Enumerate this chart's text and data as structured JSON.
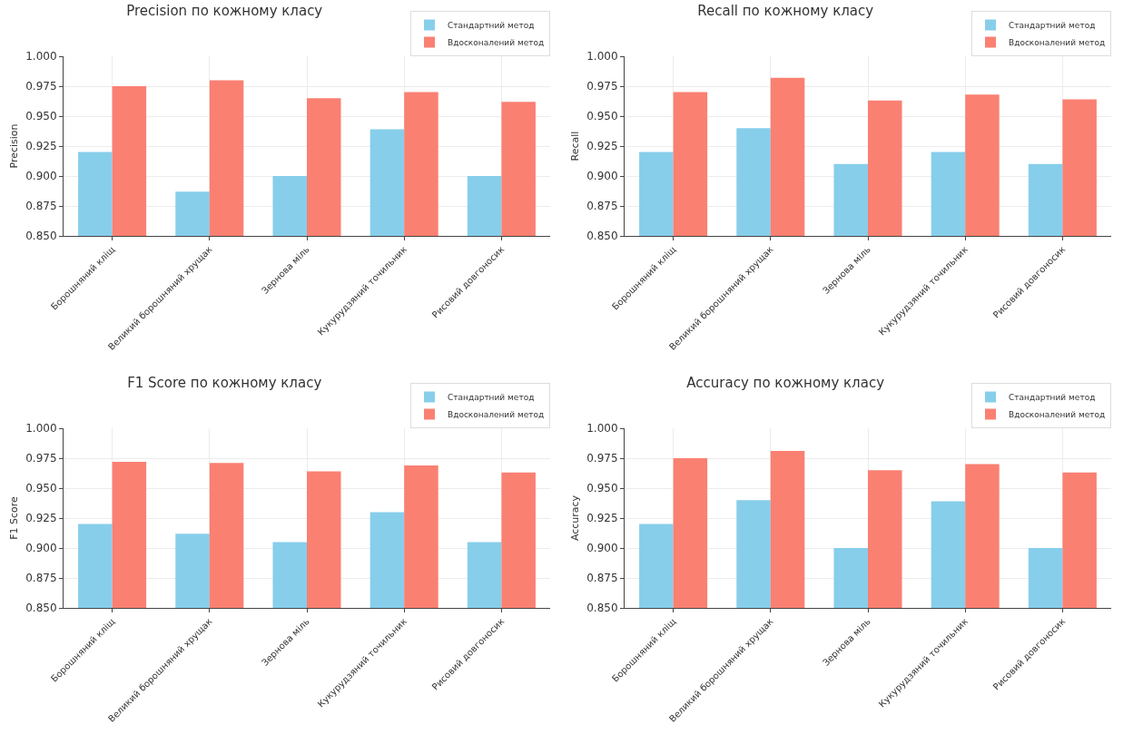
{
  "chart_data": [
    {
      "type": "bar",
      "title": "Precision по кожному класу",
      "ylabel": "Precision",
      "categories": [
        "Борошняний кліщ",
        "Великий борошняний хрущак",
        "Зернова міль",
        "Кукурудзяний точильник",
        "Рисовий довгоносик"
      ],
      "series": [
        {
          "name": "Стандартний метод",
          "color": "#87ceeb",
          "values": [
            0.92,
            0.887,
            0.9,
            0.939,
            0.9
          ]
        },
        {
          "name": "Вдосконалений метод",
          "color": "#fa8072",
          "values": [
            0.975,
            0.98,
            0.965,
            0.97,
            0.962
          ]
        }
      ],
      "ylim": [
        0.85,
        1.0
      ],
      "yticks": [
        {
          "value": 0.85,
          "label": "0.850"
        },
        {
          "value": 0.875,
          "label": "0.875"
        },
        {
          "value": 0.9,
          "label": "0.900"
        },
        {
          "value": 0.925,
          "label": "0.925"
        },
        {
          "value": 0.95,
          "label": "0.950"
        },
        {
          "value": 0.975,
          "label": "0.975"
        },
        {
          "value": 1.0,
          "label": "1.000"
        }
      ],
      "grid": true,
      "legend": "top right"
    },
    {
      "type": "bar",
      "title": "Recall по кожному класу",
      "ylabel": "Recall",
      "categories": [
        "Борошняний кліщ",
        "Великий борошняний хрущак",
        "Зернова міль",
        "Кукурудзяний точильник",
        "Рисовий довгоносик"
      ],
      "series": [
        {
          "name": "Стандартний метод",
          "color": "#87ceeb",
          "values": [
            0.92,
            0.94,
            0.91,
            0.92,
            0.91
          ]
        },
        {
          "name": "Вдосконалений метод",
          "color": "#fa8072",
          "values": [
            0.97,
            0.982,
            0.963,
            0.968,
            0.964
          ]
        }
      ],
      "ylim": [
        0.85,
        1.0
      ],
      "yticks": [
        {
          "value": 0.85,
          "label": "0.850"
        },
        {
          "value": 0.875,
          "label": "0.875"
        },
        {
          "value": 0.9,
          "label": "0.900"
        },
        {
          "value": 0.925,
          "label": "0.925"
        },
        {
          "value": 0.95,
          "label": "0.950"
        },
        {
          "value": 0.975,
          "label": "0.975"
        },
        {
          "value": 1.0,
          "label": "1.000"
        }
      ],
      "grid": true,
      "legend": "top right"
    },
    {
      "type": "bar",
      "title": "F1 Score по кожному класу",
      "ylabel": "F1 Score",
      "categories": [
        "Борошняний кліщ",
        "Великий борошняний хрущак",
        "Зернова міль",
        "Кукурудзяний точильник",
        "Рисовий довгоносик"
      ],
      "series": [
        {
          "name": "Стандартний метод",
          "color": "#87ceeb",
          "values": [
            0.92,
            0.912,
            0.905,
            0.93,
            0.905
          ]
        },
        {
          "name": "Вдосконалений метод",
          "color": "#fa8072",
          "values": [
            0.972,
            0.971,
            0.964,
            0.969,
            0.963
          ]
        }
      ],
      "ylim": [
        0.85,
        1.0
      ],
      "yticks": [
        {
          "value": 0.85,
          "label": "0.850"
        },
        {
          "value": 0.875,
          "label": "0.875"
        },
        {
          "value": 0.9,
          "label": "0.900"
        },
        {
          "value": 0.925,
          "label": "0.925"
        },
        {
          "value": 0.95,
          "label": "0.950"
        },
        {
          "value": 0.975,
          "label": "0.975"
        },
        {
          "value": 1.0,
          "label": "1.000"
        }
      ],
      "grid": true,
      "legend": "top right"
    },
    {
      "type": "bar",
      "title": "Accuracy по кожному класу",
      "ylabel": "Accuracy",
      "categories": [
        "Борошняний кліщ",
        "Великий борошняний хрущак",
        "Зернова міль",
        "Кукурудзяний точильник",
        "Рисовий довгоносик"
      ],
      "series": [
        {
          "name": "Стандартний метод",
          "color": "#87ceeb",
          "values": [
            0.92,
            0.94,
            0.9,
            0.939,
            0.9
          ]
        },
        {
          "name": "Вдосконалений метод",
          "color": "#fa8072",
          "values": [
            0.975,
            0.981,
            0.965,
            0.97,
            0.963
          ]
        }
      ],
      "ylim": [
        0.85,
        1.0
      ],
      "yticks": [
        {
          "value": 0.85,
          "label": "0.850"
        },
        {
          "value": 0.875,
          "label": "0.875"
        },
        {
          "value": 0.9,
          "label": "0.900"
        },
        {
          "value": 0.925,
          "label": "0.925"
        },
        {
          "value": 0.95,
          "label": "0.950"
        },
        {
          "value": 0.975,
          "label": "0.975"
        },
        {
          "value": 1.0,
          "label": "1.000"
        }
      ],
      "grid": true,
      "legend": "top right"
    }
  ]
}
